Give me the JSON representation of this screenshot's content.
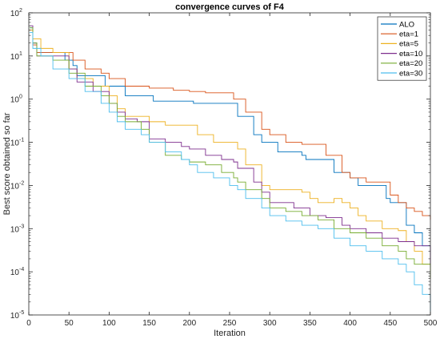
{
  "chart_data": {
    "type": "line",
    "title": "convergence curves of F4",
    "xlabel": "Iteration",
    "ylabel": "Best score obtained so far",
    "xlim": [
      0,
      500
    ],
    "ylim": [
      1e-05,
      100
    ],
    "yscale": "log",
    "x_ticks": [
      "0",
      "50",
      "100",
      "150",
      "200",
      "250",
      "300",
      "350",
      "400",
      "450",
      "500"
    ],
    "y_ticks": [
      {
        "base": "10",
        "exp": "-5"
      },
      {
        "base": "10",
        "exp": "-4"
      },
      {
        "base": "10",
        "exp": "-3"
      },
      {
        "base": "10",
        "exp": "-2"
      },
      {
        "base": "10",
        "exp": "-1"
      },
      {
        "base": "10",
        "exp": "0"
      },
      {
        "base": "10",
        "exp": "1"
      },
      {
        "base": "10",
        "exp": "2"
      }
    ],
    "grid": false,
    "legend_position": "top-right",
    "series": [
      {
        "name": "ALO",
        "color": "#0072BD",
        "points": [
          [
            1,
            45
          ],
          [
            5,
            20
          ],
          [
            10,
            12
          ],
          [
            40,
            12
          ],
          [
            45,
            8
          ],
          [
            55,
            6
          ],
          [
            60,
            3.5
          ],
          [
            90,
            3.5
          ],
          [
            95,
            2
          ],
          [
            110,
            2
          ],
          [
            120,
            1.2
          ],
          [
            150,
            1.2
          ],
          [
            155,
            0.9
          ],
          [
            200,
            0.9
          ],
          [
            205,
            0.8
          ],
          [
            250,
            0.8
          ],
          [
            260,
            0.4
          ],
          [
            280,
            0.15
          ],
          [
            290,
            0.1
          ],
          [
            300,
            0.1
          ],
          [
            310,
            0.06
          ],
          [
            340,
            0.05
          ],
          [
            345,
            0.04
          ],
          [
            375,
            0.04
          ],
          [
            380,
            0.02
          ],
          [
            400,
            0.015
          ],
          [
            410,
            0.01
          ],
          [
            430,
            0.01
          ],
          [
            445,
            0.005
          ],
          [
            450,
            0.004
          ],
          [
            460,
            0.004
          ],
          [
            470,
            0.0012
          ],
          [
            480,
            0.0008
          ],
          [
            490,
            0.0004
          ],
          [
            500,
            0.00025
          ]
        ]
      },
      {
        "name": "eta=1",
        "color": "#D95319",
        "points": [
          [
            1,
            40
          ],
          [
            5,
            18
          ],
          [
            10,
            12
          ],
          [
            50,
            12
          ],
          [
            55,
            8
          ],
          [
            70,
            5
          ],
          [
            90,
            4
          ],
          [
            100,
            3
          ],
          [
            120,
            2
          ],
          [
            150,
            1.8
          ],
          [
            180,
            1.6
          ],
          [
            200,
            1.5
          ],
          [
            220,
            1.4
          ],
          [
            250,
            1.4
          ],
          [
            255,
            1.0
          ],
          [
            270,
            0.5
          ],
          [
            290,
            0.2
          ],
          [
            300,
            0.15
          ],
          [
            320,
            0.1
          ],
          [
            340,
            0.09
          ],
          [
            360,
            0.09
          ],
          [
            370,
            0.05
          ],
          [
            390,
            0.02
          ],
          [
            400,
            0.015
          ],
          [
            420,
            0.012
          ],
          [
            440,
            0.012
          ],
          [
            450,
            0.006
          ],
          [
            460,
            0.004
          ],
          [
            470,
            0.003
          ],
          [
            480,
            0.0025
          ],
          [
            490,
            0.002
          ],
          [
            500,
            0.0016
          ]
        ]
      },
      {
        "name": "eta=5",
        "color": "#EDB120",
        "points": [
          [
            1,
            40
          ],
          [
            5,
            25
          ],
          [
            15,
            15
          ],
          [
            30,
            12
          ],
          [
            50,
            5
          ],
          [
            60,
            3
          ],
          [
            80,
            2
          ],
          [
            100,
            1.2
          ],
          [
            110,
            0.6
          ],
          [
            120,
            0.4
          ],
          [
            140,
            0.4
          ],
          [
            150,
            0.3
          ],
          [
            170,
            0.25
          ],
          [
            200,
            0.25
          ],
          [
            210,
            0.15
          ],
          [
            230,
            0.1
          ],
          [
            260,
            0.07
          ],
          [
            270,
            0.03
          ],
          [
            290,
            0.01
          ],
          [
            300,
            0.008
          ],
          [
            330,
            0.008
          ],
          [
            340,
            0.007
          ],
          [
            350,
            0.005
          ],
          [
            360,
            0.004
          ],
          [
            380,
            0.005
          ],
          [
            390,
            0.004
          ],
          [
            400,
            0.003
          ],
          [
            410,
            0.002
          ],
          [
            420,
            0.0015
          ],
          [
            440,
            0.001
          ],
          [
            460,
            0.0009
          ],
          [
            470,
            0.0005
          ],
          [
            480,
            0.0003
          ],
          [
            490,
            0.00015
          ],
          [
            500,
            0.0001
          ]
        ]
      },
      {
        "name": "eta=10",
        "color": "#7E2F8E",
        "points": [
          [
            1,
            50
          ],
          [
            5,
            20
          ],
          [
            10,
            10
          ],
          [
            40,
            10
          ],
          [
            50,
            5
          ],
          [
            60,
            2.5
          ],
          [
            80,
            1.5
          ],
          [
            100,
            0.8
          ],
          [
            110,
            0.5
          ],
          [
            120,
            0.35
          ],
          [
            135,
            0.3
          ],
          [
            150,
            0.12
          ],
          [
            170,
            0.1
          ],
          [
            190,
            0.08
          ],
          [
            200,
            0.07
          ],
          [
            220,
            0.05
          ],
          [
            240,
            0.04
          ],
          [
            255,
            0.035
          ],
          [
            260,
            0.025
          ],
          [
            280,
            0.012
          ],
          [
            290,
            0.007
          ],
          [
            300,
            0.004
          ],
          [
            330,
            0.003
          ],
          [
            350,
            0.002
          ],
          [
            370,
            0.0018
          ],
          [
            390,
            0.0012
          ],
          [
            400,
            0.001
          ],
          [
            420,
            0.0008
          ],
          [
            440,
            0.0006
          ],
          [
            460,
            0.0005
          ],
          [
            480,
            0.0004
          ],
          [
            500,
            0.00013
          ]
        ]
      },
      {
        "name": "eta=20",
        "color": "#77AC30",
        "points": [
          [
            1,
            45
          ],
          [
            5,
            20
          ],
          [
            10,
            10
          ],
          [
            30,
            8
          ],
          [
            50,
            4
          ],
          [
            70,
            2
          ],
          [
            90,
            1.2
          ],
          [
            100,
            0.8
          ],
          [
            110,
            0.4
          ],
          [
            120,
            0.3
          ],
          [
            140,
            0.2
          ],
          [
            150,
            0.1
          ],
          [
            170,
            0.05
          ],
          [
            190,
            0.04
          ],
          [
            200,
            0.035
          ],
          [
            220,
            0.03
          ],
          [
            240,
            0.02
          ],
          [
            255,
            0.015
          ],
          [
            260,
            0.012
          ],
          [
            270,
            0.008
          ],
          [
            290,
            0.005
          ],
          [
            300,
            0.003
          ],
          [
            320,
            0.0025
          ],
          [
            340,
            0.002
          ],
          [
            360,
            0.0016
          ],
          [
            380,
            0.001
          ],
          [
            400,
            0.0008
          ],
          [
            420,
            0.0006
          ],
          [
            440,
            0.0004
          ],
          [
            460,
            0.0003
          ],
          [
            470,
            0.0002
          ],
          [
            480,
            0.00015
          ],
          [
            500,
            7e-05
          ]
        ]
      },
      {
        "name": "eta=30",
        "color": "#4DBEEE",
        "points": [
          [
            1,
            35
          ],
          [
            5,
            15
          ],
          [
            15,
            10
          ],
          [
            30,
            5
          ],
          [
            50,
            3
          ],
          [
            70,
            1.5
          ],
          [
            90,
            0.8
          ],
          [
            100,
            0.5
          ],
          [
            110,
            0.3
          ],
          [
            120,
            0.2
          ],
          [
            140,
            0.15
          ],
          [
            150,
            0.1
          ],
          [
            170,
            0.06
          ],
          [
            190,
            0.04
          ],
          [
            200,
            0.03
          ],
          [
            210,
            0.02
          ],
          [
            230,
            0.015
          ],
          [
            250,
            0.01
          ],
          [
            260,
            0.008
          ],
          [
            270,
            0.005
          ],
          [
            290,
            0.003
          ],
          [
            300,
            0.002
          ],
          [
            320,
            0.0015
          ],
          [
            340,
            0.0012
          ],
          [
            360,
            0.001
          ],
          [
            380,
            0.0006
          ],
          [
            400,
            0.0004
          ],
          [
            420,
            0.0003
          ],
          [
            440,
            0.0002
          ],
          [
            460,
            0.00015
          ],
          [
            470,
            0.0001
          ],
          [
            480,
            5e-05
          ],
          [
            490,
            3e-05
          ],
          [
            500,
            1.2e-05
          ]
        ]
      }
    ]
  }
}
